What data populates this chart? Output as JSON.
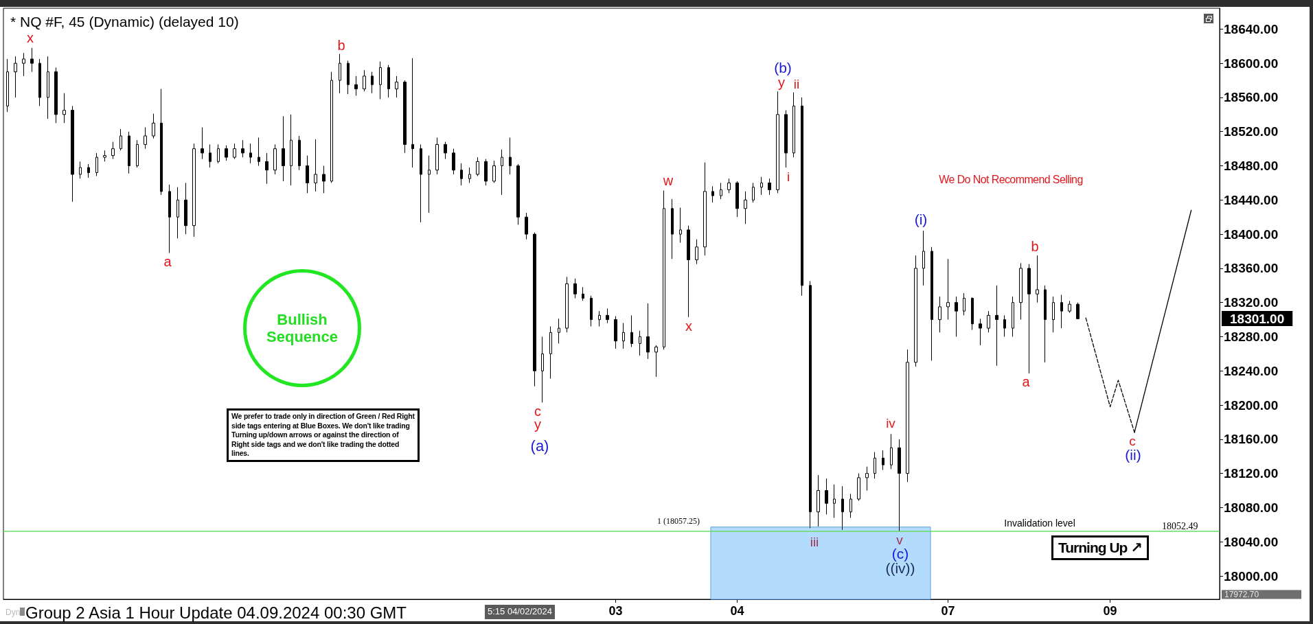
{
  "chart_data": {
    "type": "candlestick",
    "title": "* NQ #F, 45 (Dynamic) (delayed 10)",
    "color": "#000000",
    "categories": [
      null,
      null,
      null,
      null,
      null,
      null,
      null,
      null,
      null,
      null,
      null,
      null,
      null,
      null,
      null,
      null,
      null,
      null,
      null,
      null,
      null,
      null,
      null,
      null,
      null,
      null,
      null,
      null,
      null,
      null,
      null,
      null,
      null,
      null,
      null,
      null,
      null,
      null,
      null,
      null,
      null,
      null,
      null,
      null,
      null,
      null,
      null,
      null,
      null,
      null,
      null,
      null,
      null,
      null,
      null,
      null,
      null,
      null,
      null,
      null,
      null,
      null,
      null,
      null,
      null,
      null,
      null,
      null,
      null,
      null,
      null,
      null,
      null,
      null,
      null,
      "03",
      null,
      null,
      null,
      null,
      null,
      null,
      null,
      null,
      null,
      null,
      null,
      null,
      null,
      null,
      "04",
      null,
      null,
      null,
      null,
      null,
      null,
      null,
      null,
      null,
      null,
      null,
      null,
      null,
      null,
      null,
      null,
      null,
      null,
      null,
      null,
      null,
      null,
      null,
      null,
      null,
      "07",
      null,
      null,
      null,
      null,
      null,
      null,
      null,
      null,
      null,
      null,
      null,
      null,
      null,
      null,
      null,
      null,
      null,
      null,
      null,
      "09",
      null,
      null,
      null,
      null,
      null,
      null,
      null,
      null,
      null,
      null,
      null,
      null,
      null
    ],
    "ohlc": [
      [
        18550,
        18605,
        18543,
        18590
      ],
      [
        18590,
        18608,
        18560,
        18600
      ],
      [
        18600,
        18612,
        18585,
        18605
      ],
      [
        18605,
        18618,
        18590,
        18600
      ],
      [
        18600,
        18605,
        18550,
        18560
      ],
      [
        18560,
        18608,
        18535,
        18590
      ],
      [
        18590,
        18595,
        18530,
        18540
      ],
      [
        18540,
        18565,
        18530,
        18545
      ],
      [
        18545,
        18550,
        18438,
        18470
      ],
      [
        18470,
        18485,
        18465,
        18478
      ],
      [
        18478,
        18482,
        18466,
        18472
      ],
      [
        18472,
        18495,
        18468,
        18490
      ],
      [
        18490,
        18498,
        18485,
        18492
      ],
      [
        18492,
        18508,
        18488,
        18500
      ],
      [
        18500,
        18523,
        18498,
        18515
      ],
      [
        18515,
        18520,
        18471,
        18480
      ],
      [
        18480,
        18510,
        18478,
        18505
      ],
      [
        18505,
        18525,
        18500,
        18515
      ],
      [
        18515,
        18541,
        18512,
        18530
      ],
      [
        18530,
        18570,
        18446,
        18450
      ],
      [
        18450,
        18458,
        18378,
        18420
      ],
      [
        18420,
        18455,
        18395,
        18440
      ],
      [
        18440,
        18460,
        18400,
        18410
      ],
      [
        18410,
        18506,
        18397,
        18500
      ],
      [
        18500,
        18525,
        18488,
        18495
      ],
      [
        18495,
        18505,
        18478,
        18485
      ],
      [
        18485,
        18505,
        18483,
        18500
      ],
      [
        18500,
        18504,
        18486,
        18490
      ],
      [
        18490,
        18506,
        18488,
        18500
      ],
      [
        18500,
        18510,
        18490,
        18495
      ],
      [
        18495,
        18506,
        18483,
        18490
      ],
      [
        18490,
        18513,
        18480,
        18485
      ],
      [
        18485,
        18495,
        18459,
        18475
      ],
      [
        18475,
        18505,
        18470,
        18500
      ],
      [
        18500,
        18538,
        18462,
        18480
      ],
      [
        18480,
        18540,
        18457,
        18510
      ],
      [
        18510,
        18515,
        18475,
        18480
      ],
      [
        18480,
        18492,
        18448,
        18460
      ],
      [
        18460,
        18511,
        18450,
        18470
      ],
      [
        18470,
        18480,
        18448,
        18462
      ],
      [
        18462,
        18590,
        18460,
        18580
      ],
      [
        18580,
        18611,
        18565,
        18600
      ],
      [
        18600,
        18603,
        18564,
        18575
      ],
      [
        18575,
        18585,
        18562,
        18570
      ],
      [
        18570,
        18592,
        18567,
        18585
      ],
      [
        18585,
        18590,
        18565,
        18575
      ],
      [
        18575,
        18602,
        18558,
        18595
      ],
      [
        18595,
        18598,
        18560,
        18570
      ],
      [
        18570,
        18585,
        18560,
        18578
      ],
      [
        18578,
        18580,
        18495,
        18505
      ],
      [
        18505,
        18606,
        18478,
        18500
      ],
      [
        18500,
        18505,
        18414,
        18470
      ],
      [
        18470,
        18492,
        18425,
        18475
      ],
      [
        18475,
        18513,
        18470,
        18505
      ],
      [
        18505,
        18508,
        18488,
        18495
      ],
      [
        18495,
        18500,
        18470,
        18475
      ],
      [
        18475,
        18483,
        18457,
        18465
      ],
      [
        18465,
        18478,
        18460,
        18470
      ],
      [
        18470,
        18490,
        18468,
        18485
      ],
      [
        18485,
        18488,
        18457,
        18462
      ],
      [
        18462,
        18486,
        18460,
        18480
      ],
      [
        18480,
        18499,
        18446,
        18490
      ],
      [
        18490,
        18513,
        18470,
        18480
      ],
      [
        18480,
        18482,
        18411,
        18420
      ],
      [
        18420,
        18425,
        18394,
        18400
      ],
      [
        18400,
        18402,
        18222,
        18240
      ],
      [
        18240,
        18280,
        18203,
        18260
      ],
      [
        18260,
        18292,
        18231,
        18285
      ],
      [
        18285,
        18301,
        18272,
        18290
      ],
      [
        18290,
        18350,
        18285,
        18342
      ],
      [
        18342,
        18348,
        18325,
        18330
      ],
      [
        18330,
        18338,
        18322,
        18325
      ],
      [
        18325,
        18328,
        18292,
        18300
      ],
      [
        18300,
        18310,
        18292,
        18305
      ],
      [
        18305,
        18313,
        18296,
        18300
      ],
      [
        18300,
        18304,
        18266,
        18275
      ],
      [
        18275,
        18296,
        18266,
        18285
      ],
      [
        18285,
        18305,
        18268,
        18272
      ],
      [
        18272,
        18287,
        18258,
        18280
      ],
      [
        18280,
        18319,
        18254,
        18262
      ],
      [
        18262,
        18270,
        18233,
        18268
      ],
      [
        18268,
        18451,
        18265,
        18430
      ],
      [
        18430,
        18441,
        18371,
        18400
      ],
      [
        18400,
        18431,
        18390,
        18405
      ],
      [
        18405,
        18410,
        18303,
        18370
      ],
      [
        18370,
        18394,
        18365,
        18385
      ],
      [
        18385,
        18484,
        18375,
        18450
      ],
      [
        18450,
        18456,
        18437,
        18445
      ],
      [
        18445,
        18460,
        18441,
        18452
      ],
      [
        18452,
        18465,
        18448,
        18460
      ],
      [
        18460,
        18462,
        18420,
        18430
      ],
      [
        18430,
        18450,
        18412,
        18440
      ],
      [
        18440,
        18460,
        18437,
        18455
      ],
      [
        18455,
        18467,
        18446,
        18460
      ],
      [
        18460,
        18465,
        18446,
        18452
      ],
      [
        18452,
        18567,
        18448,
        18540
      ],
      [
        18540,
        18545,
        18478,
        18495
      ],
      [
        18495,
        18566,
        18490,
        18550
      ],
      [
        18550,
        18560,
        18328,
        18340
      ],
      [
        18340,
        18345,
        18056,
        18075
      ],
      [
        18075,
        18118,
        18058,
        18100
      ],
      [
        18100,
        18114,
        18072,
        18085
      ],
      [
        18085,
        18107,
        18068,
        18090
      ],
      [
        18090,
        18105,
        18054,
        18075
      ],
      [
        18075,
        18096,
        18068,
        18090
      ],
      [
        18090,
        18120,
        18088,
        18115
      ],
      [
        18115,
        18128,
        18100,
        18120
      ],
      [
        18120,
        18145,
        18114,
        18138
      ],
      [
        18138,
        18147,
        18124,
        18130
      ],
      [
        18130,
        18166,
        18125,
        18150
      ],
      [
        18150,
        18160,
        18052,
        18120
      ],
      [
        18120,
        18265,
        18110,
        18250
      ],
      [
        18250,
        18375,
        18245,
        18360
      ],
      [
        18360,
        18404,
        18340,
        18380
      ],
      [
        18380,
        18385,
        18252,
        18300
      ],
      [
        18300,
        18327,
        18285,
        18315
      ],
      [
        18315,
        18371,
        18300,
        18320
      ],
      [
        18320,
        18327,
        18280,
        18310
      ],
      [
        18310,
        18331,
        18305,
        18325
      ],
      [
        18325,
        18326,
        18288,
        18295
      ],
      [
        18295,
        18301,
        18270,
        18290
      ],
      [
        18290,
        18310,
        18285,
        18305
      ],
      [
        18305,
        18340,
        18246,
        18300
      ],
      [
        18300,
        18305,
        18280,
        18290
      ],
      [
        18290,
        18327,
        18280,
        18320
      ],
      [
        18320,
        18366,
        18300,
        18360
      ],
      [
        18360,
        18365,
        18237,
        18330
      ],
      [
        18330,
        18375,
        18320,
        18335
      ],
      [
        18335,
        18340,
        18250,
        18300
      ],
      [
        18300,
        18327,
        18285,
        18320
      ],
      [
        18320,
        18329,
        18290,
        18310
      ],
      [
        18310,
        18322,
        18308,
        18318
      ],
      [
        18318,
        18320,
        18301,
        18301
      ],
      null,
      null,
      null,
      null,
      null,
      null,
      null,
      null,
      null,
      null,
      null,
      null,
      null,
      null,
      null,
      null,
      null
    ],
    "series": [
      {
        "type": "line",
        "line_style": "dashed",
        "color": "#000000",
        "values": [
          null,
          null,
          null,
          null,
          null,
          null,
          null,
          null,
          null,
          null,
          null,
          null,
          null,
          null,
          null,
          null,
          null,
          null,
          null,
          null,
          null,
          null,
          null,
          null,
          null,
          null,
          null,
          null,
          null,
          null,
          null,
          null,
          null,
          null,
          null,
          null,
          null,
          null,
          null,
          null,
          null,
          null,
          null,
          null,
          null,
          null,
          null,
          null,
          null,
          null,
          null,
          null,
          null,
          null,
          null,
          null,
          null,
          null,
          null,
          null,
          null,
          null,
          null,
          null,
          null,
          null,
          null,
          null,
          null,
          null,
          null,
          null,
          null,
          null,
          null,
          null,
          null,
          null,
          null,
          null,
          null,
          null,
          null,
          null,
          null,
          null,
          null,
          null,
          null,
          null,
          null,
          null,
          null,
          null,
          null,
          null,
          null,
          null,
          null,
          null,
          null,
          null,
          null,
          null,
          null,
          null,
          null,
          null,
          null,
          null,
          null,
          null,
          null,
          null,
          null,
          null,
          null,
          null,
          null,
          null,
          null,
          null,
          null,
          null,
          null,
          null,
          null,
          null,
          null,
          null,
          null,
          null,
          null,
          18302,
          null,
          null,
          18198,
          18229,
          null,
          18168,
          null,
          null,
          null,
          null,
          null,
          null,
          null,
          null,
          null,
          null
        ]
      },
      {
        "type": "line",
        "line_style": "solid",
        "color": "#000000",
        "values": [
          null,
          null,
          null,
          null,
          null,
          null,
          null,
          null,
          null,
          null,
          null,
          null,
          null,
          null,
          null,
          null,
          null,
          null,
          null,
          null,
          null,
          null,
          null,
          null,
          null,
          null,
          null,
          null,
          null,
          null,
          null,
          null,
          null,
          null,
          null,
          null,
          null,
          null,
          null,
          null,
          null,
          null,
          null,
          null,
          null,
          null,
          null,
          null,
          null,
          null,
          null,
          null,
          null,
          null,
          null,
          null,
          null,
          null,
          null,
          null,
          null,
          null,
          null,
          null,
          null,
          null,
          null,
          null,
          null,
          null,
          null,
          null,
          null,
          null,
          null,
          null,
          null,
          null,
          null,
          null,
          null,
          null,
          null,
          null,
          null,
          null,
          null,
          null,
          null,
          null,
          null,
          null,
          null,
          null,
          null,
          null,
          null,
          null,
          null,
          null,
          null,
          null,
          null,
          null,
          null,
          null,
          null,
          null,
          null,
          null,
          null,
          null,
          null,
          null,
          null,
          null,
          null,
          null,
          null,
          null,
          null,
          null,
          null,
          null,
          null,
          null,
          null,
          null,
          null,
          null,
          null,
          null,
          null,
          null,
          null,
          null,
          null,
          null,
          null,
          18168,
          null,
          null,
          null,
          null,
          null,
          null,
          18428,
          null,
          null,
          null
        ]
      }
    ],
    "ylim": [
      17972.7,
      18664.4
    ],
    "yticks": [
      {
        "value": 18000,
        "label": "18000.00"
      },
      {
        "value": 18040,
        "label": "18040.00"
      },
      {
        "value": 18080,
        "label": "18080.00"
      },
      {
        "value": 18120,
        "label": "18120.00"
      },
      {
        "value": 18160,
        "label": "18160.00"
      },
      {
        "value": 18200,
        "label": "18200.00"
      },
      {
        "value": 18240,
        "label": "18240.00"
      },
      {
        "value": 18280,
        "label": "18280.00"
      },
      {
        "value": 18320,
        "label": "18320.00"
      },
      {
        "value": 18360,
        "label": "18360.00"
      },
      {
        "value": 18400,
        "label": "18400.00"
      },
      {
        "value": 18440,
        "label": "18440.00"
      },
      {
        "value": 18480,
        "label": "18480.00"
      },
      {
        "value": 18520,
        "label": "18520.00"
      },
      {
        "value": 18560,
        "label": "18560.00"
      },
      {
        "value": 18600,
        "label": "18600.00"
      },
      {
        "value": 18640,
        "label": "18640.00"
      }
    ],
    "bands": [
      {
        "axis": "y",
        "from": 17972.7,
        "to": 18057.25,
        "label": "1 (18057.25)",
        "color": "#b3dbfb"
      }
    ],
    "ref_lines": [
      {
        "axis": "y",
        "value": 18052.49,
        "label": "Invalidation level",
        "color": "#66dd66"
      }
    ],
    "annotations": [
      "x",
      "a",
      "b",
      "c",
      "y",
      "(a)",
      "w",
      "x",
      "(b)",
      "y",
      "ii",
      "i",
      "iii",
      "iv",
      "v",
      "(c)",
      "((iv))",
      "(i)",
      "a",
      "b",
      "c",
      "(ii)",
      "18301.00",
      "17972.70",
      "We Do Not Recommend Selling",
      "Bullish Sequence",
      "We prefer to trade only in direction of Green / Red Right side tags entering at Blue Boxes. We don't like trading Turning up/down arrows or against the direction of Right side tags and we don't like trading the dotted lines.",
      "Turning Up ↗",
      "Group 2 Asia 1 Hour Update 04.09.2024 00:30 GMT",
      "5:15 04/02/2024",
      "Dyn",
      "18052.49"
    ]
  }
}
